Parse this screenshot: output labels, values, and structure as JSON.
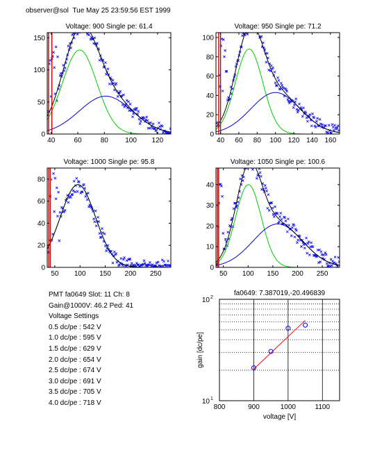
{
  "header": {
    "user_host": "observer@sol",
    "timestamp": "Tue May 25 23:59:56 EST 1999"
  },
  "info": {
    "pmt_line": "PMT fa0649 Slot: 11 Ch: 8",
    "gain_line": "Gain@1000V: 46.2 Ped: 41",
    "settings_title": "Voltage Settings",
    "settings": [
      "0.5 dc/pe : 542 V",
      "1.0 dc/pe : 595 V",
      "1.5 dc/pe : 629 V",
      "2.0 dc/pe : 654 V",
      "2.5 dc/pe : 674 V",
      "3.0 dc/pe : 691 V",
      "3.5 dc/pe : 705 V",
      "4.0 dc/pe : 718 V"
    ]
  },
  "colors": {
    "data_marker": "#0000ff",
    "fit_total": "#000000",
    "fit_single_pe": "#00cc00",
    "fit_multi_pe": "#0000cc",
    "pedestal": "#cc0000",
    "gain_fit": "#ff0000"
  },
  "chart_data": [
    {
      "type": "scatter",
      "title": "Voltage: 900 Single pe: 61.4",
      "xlim": [
        37,
        130
      ],
      "ylim": [
        0,
        158
      ],
      "xticks": [
        40,
        60,
        80,
        100,
        120
      ],
      "yticks": [
        0,
        50,
        100,
        150
      ],
      "pedestal_x": [
        38,
        40.5
      ],
      "components": {
        "single_pe": {
          "amp": 131,
          "mu": 61.4,
          "sigma": 13
        },
        "multi_pe": {
          "amp": 59,
          "mu": 81,
          "sigma": 20
        }
      },
      "peak_region": [
        38,
        46
      ],
      "noise": 10
    },
    {
      "type": "scatter",
      "title": "Voltage: 950 Single pe: 71.2",
      "xlim": [
        35,
        170
      ],
      "ylim": [
        0,
        105
      ],
      "xticks": [
        40,
        60,
        80,
        100,
        120,
        140,
        160
      ],
      "yticks": [
        0,
        20,
        40,
        60,
        80,
        100
      ],
      "pedestal_x": [
        38,
        40
      ],
      "components": {
        "single_pe": {
          "amp": 88,
          "mu": 71.2,
          "sigma": 15
        },
        "multi_pe": {
          "amp": 43,
          "mu": 100,
          "sigma": 27
        }
      },
      "peak_region": [
        38,
        47
      ],
      "noise": 7
    },
    {
      "type": "scatter",
      "title": "Voltage: 1000 Single pe: 95.8",
      "xlim": [
        35,
        280
      ],
      "ylim": [
        0,
        90
      ],
      "xticks": [
        50,
        100,
        150,
        200,
        250
      ],
      "yticks": [
        0,
        20,
        40,
        60,
        80
      ],
      "pedestal_x": [
        38,
        41
      ],
      "components": {
        "single_pe": {
          "amp": 75,
          "mu": 95.8,
          "sigma": 35
        },
        "multi_pe": {
          "amp": 0,
          "mu": 150,
          "sigma": 40
        }
      },
      "peak_region": [
        40,
        60
      ],
      "noise": 7
    },
    {
      "type": "scatter",
      "title": "Voltage: 1050 Single pe: 100.6",
      "xlim": [
        35,
        285
      ],
      "ylim": [
        0,
        48
      ],
      "xticks": [
        50,
        100,
        150,
        200,
        250
      ],
      "yticks": [
        0,
        10,
        20,
        30,
        40
      ],
      "pedestal_x": [
        38,
        40.5
      ],
      "components": {
        "single_pe": {
          "amp": 40,
          "mu": 100.6,
          "sigma": 26
        },
        "multi_pe": {
          "amp": 21,
          "mu": 160,
          "sigma": 50
        }
      },
      "peak_region": [
        38,
        50
      ],
      "noise": 4
    },
    {
      "type": "scatter",
      "title": "fa0649: 7.387019,-20.496839",
      "xlabel": "voltage [V]",
      "ylabel": "gain [dc/pe]",
      "xlim": [
        800,
        1150
      ],
      "ylim": [
        10,
        100
      ],
      "yscale": "log",
      "xticks": [
        800,
        900,
        1000,
        1100
      ],
      "yticks": [
        10,
        100
      ],
      "ytick_labels": [
        {
          "base": "10",
          "exp": "1"
        },
        {
          "base": "10",
          "exp": "2"
        }
      ],
      "x": [
        900,
        950,
        1000,
        1050
      ],
      "y": [
        21.1,
        30.6,
        51.9,
        55.6
      ],
      "fit": {
        "x": [
          900,
          1050
        ],
        "y": [
          20.5,
          62.0
        ]
      },
      "grid": true
    }
  ]
}
